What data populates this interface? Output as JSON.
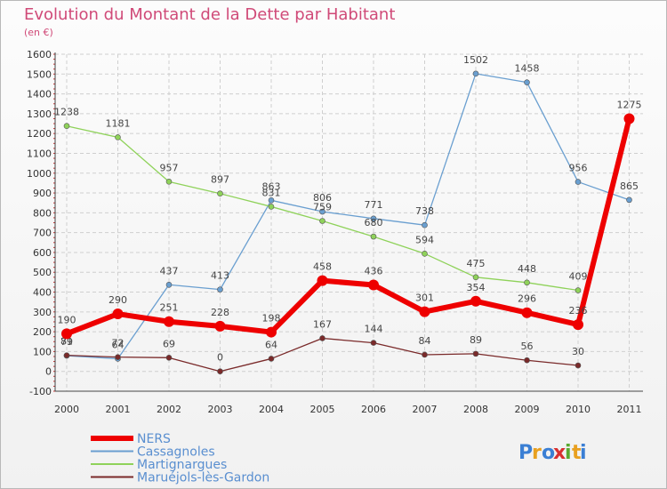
{
  "chart_data": {
    "type": "line",
    "title": "Evolution du Montant de la Dette par Habitant",
    "subtitle": "(en €)",
    "xlabel": "",
    "ylabel": "",
    "x": [
      "2000",
      "2001",
      "2002",
      "2003",
      "2004",
      "2005",
      "2006",
      "2007",
      "2008",
      "2009",
      "2010",
      "2011"
    ],
    "ylim": [
      -100,
      1600
    ],
    "yticks": [
      -100,
      0,
      100,
      200,
      300,
      400,
      500,
      600,
      700,
      800,
      900,
      1000,
      1100,
      1200,
      1300,
      1400,
      1500,
      1600
    ],
    "grid": true,
    "legend_position": "bottom-left",
    "series": [
      {
        "name": "NERS",
        "color": "#ee0000",
        "values": [
          190,
          290,
          251,
          228,
          198,
          458,
          436,
          301,
          354,
          296,
          236,
          1275
        ]
      },
      {
        "name": "Cassagnoles",
        "color": "#6a9fd0",
        "values": [
          79,
          64,
          437,
          413,
          863,
          806,
          771,
          738,
          1502,
          1458,
          956,
          865
        ]
      },
      {
        "name": "Martignargues",
        "color": "#8fd25a",
        "values": [
          1238,
          1181,
          957,
          897,
          831,
          759,
          680,
          594,
          475,
          448,
          409,
          null
        ]
      },
      {
        "name": "Maruéjols-lès-Gardon",
        "color": "#7a2a2a",
        "values": [
          81,
          72,
          69,
          0,
          64,
          167,
          144,
          84,
          89,
          56,
          30,
          null
        ]
      }
    ]
  },
  "branding": {
    "logo_text": "Proxiti"
  }
}
